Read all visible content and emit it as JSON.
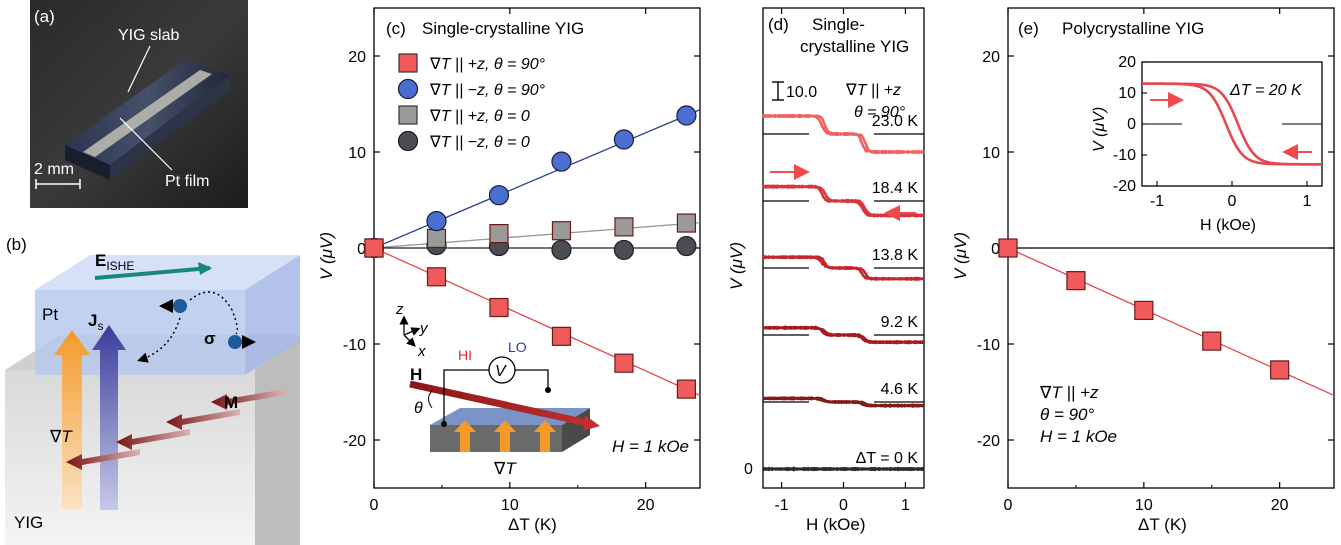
{
  "panels": {
    "a": {
      "label": "(a)",
      "texts": {
        "slab": "YIG slab",
        "film": "Pt film",
        "scale": "2 mm"
      }
    },
    "b": {
      "label": "(b)",
      "texts": {
        "e": "E",
        "e_sub": "ISHE",
        "pt": "Pt",
        "js": "J",
        "js_sub": "s",
        "sigma": "σ",
        "grad": "∇T",
        "m": "M",
        "yig": "YIG"
      }
    }
  },
  "chart_data": [
    {
      "id": "c",
      "type": "scatter",
      "panel_label": "(c)",
      "title": "Single-crystalline YIG",
      "xlabel": "ΔT (K)",
      "ylabel": "V (μV)",
      "xlim": [
        0,
        24
      ],
      "ylim": [
        -25,
        25
      ],
      "xticks": [
        0,
        10,
        20
      ],
      "yticks": [
        -20,
        -10,
        0,
        10,
        20
      ],
      "tick_labels_x": [
        "0",
        "10",
        "20"
      ],
      "tick_labels_y": [
        "-20",
        "-10",
        "0",
        "10",
        "20"
      ],
      "series": [
        {
          "name": "∇T || +z, θ = 90°",
          "marker": "square",
          "color": "#f05a5a",
          "line_color": "#e8474f",
          "x": [
            0,
            4.6,
            9.2,
            13.8,
            18.4,
            23.0
          ],
          "y": [
            0,
            -3.0,
            -6.2,
            -9.2,
            -12.0,
            -14.7
          ],
          "slope": -0.64
        },
        {
          "name": "∇T || −z, θ = 90°",
          "marker": "circle",
          "color": "#4a6fd1",
          "line_color": "#2c3e8f",
          "x": [
            0,
            4.6,
            9.2,
            13.8,
            18.4,
            23.0
          ],
          "y": [
            0,
            2.8,
            5.5,
            9.0,
            11.3,
            13.8
          ],
          "slope": 0.6
        },
        {
          "name": "∇T || +z, θ = 0",
          "marker": "square",
          "color": "#9a9a9a",
          "line_color": "#999999",
          "x": [
            0,
            4.6,
            9.2,
            13.8,
            18.4,
            23.0
          ],
          "y": [
            0,
            1.0,
            1.5,
            1.8,
            2.2,
            2.6
          ],
          "slope": 0.11
        },
        {
          "name": "∇T || −z, θ = 0",
          "marker": "circle",
          "color": "#4d4d4d",
          "line_color": "#222222",
          "x": [
            0,
            4.6,
            9.2,
            13.8,
            18.4,
            23.0
          ],
          "y": [
            0,
            0.3,
            0.2,
            -0.2,
            -0.2,
            0.2
          ],
          "slope": 0.0
        }
      ],
      "annotations": {
        "field": "H = 1 kOe",
        "grad": "∇T",
        "H": "H",
        "hi": "HI",
        "lo": "LO",
        "v": "V",
        "theta": "θ",
        "ax_z": "z",
        "ax_y": "y",
        "ax_x": "x"
      }
    },
    {
      "id": "d",
      "type": "line",
      "panel_label": "(d)",
      "title_line1": "Single-",
      "title_line2": "crystalline YIG",
      "conditions_line1": "∇T || +z",
      "conditions_line2": "θ = 90°",
      "scale_bar": "10.0",
      "xlabel": "H (kOe)",
      "ylabel": "V (μV)",
      "xlim": [
        -1.3,
        1.3
      ],
      "xticks": [
        -1,
        0,
        1
      ],
      "tick_labels_x": [
        "-1",
        "0",
        "1"
      ],
      "zero_label": "0",
      "series": [
        {
          "name": "23.0 K",
          "color": "#f06060",
          "offset": 5,
          "amplitude": 0.5
        },
        {
          "name": "18.4 K",
          "color": "#d8353d",
          "offset": 4,
          "amplitude": 0.4
        },
        {
          "name": "13.8 K",
          "color": "#c3262e",
          "offset": 3,
          "amplitude": 0.3
        },
        {
          "name": "9.2 K",
          "color": "#a8181f",
          "offset": 2,
          "amplitude": 0.2
        },
        {
          "name": "4.6 K",
          "color": "#821a18",
          "offset": 1,
          "amplitude": 0.1
        },
        {
          "name": "ΔT = 0 K",
          "color": "#2b2b2b",
          "offset": 0,
          "amplitude": 0.0
        }
      ]
    },
    {
      "id": "e",
      "type": "scatter",
      "panel_label": "(e)",
      "title": "Polycrystalline YIG",
      "xlabel": "ΔT (K)",
      "ylabel": "V (μV)",
      "xlim": [
        0,
        24
      ],
      "ylim": [
        -25,
        25
      ],
      "xticks": [
        0,
        10,
        20
      ],
      "yticks": [
        -20,
        -10,
        0,
        10,
        20
      ],
      "tick_labels_x": [
        "0",
        "10",
        "20"
      ],
      "tick_labels_y": [
        "-20",
        "-10",
        "0",
        "10",
        "20"
      ],
      "series": [
        {
          "name": "polycrystalline",
          "marker": "square",
          "color": "#f05a5a",
          "line_color": "#e8474f",
          "x": [
            0,
            5,
            10,
            15,
            20
          ],
          "y": [
            0,
            -3.4,
            -6.5,
            -9.7,
            -12.7
          ],
          "slope": -0.64
        }
      ],
      "annotations": {
        "line1": "∇T || +z",
        "line2": "θ = 90°",
        "line3": "H = 1 kOe"
      },
      "inset": {
        "type": "line",
        "title": "ΔT = 20 K",
        "xlabel": "H (kOe)",
        "ylabel": "V (μV)",
        "xlim": [
          -1.2,
          1.2
        ],
        "ylim": [
          -20,
          20
        ],
        "xticks": [
          -1,
          0,
          1
        ],
        "yticks": [
          -20,
          -10,
          0,
          10,
          20
        ],
        "tick_labels_x": [
          "-1",
          "0",
          "1"
        ],
        "tick_labels_y": [
          "-20",
          "-10",
          "0",
          "10",
          "20"
        ],
        "saturation": 13
      }
    }
  ]
}
